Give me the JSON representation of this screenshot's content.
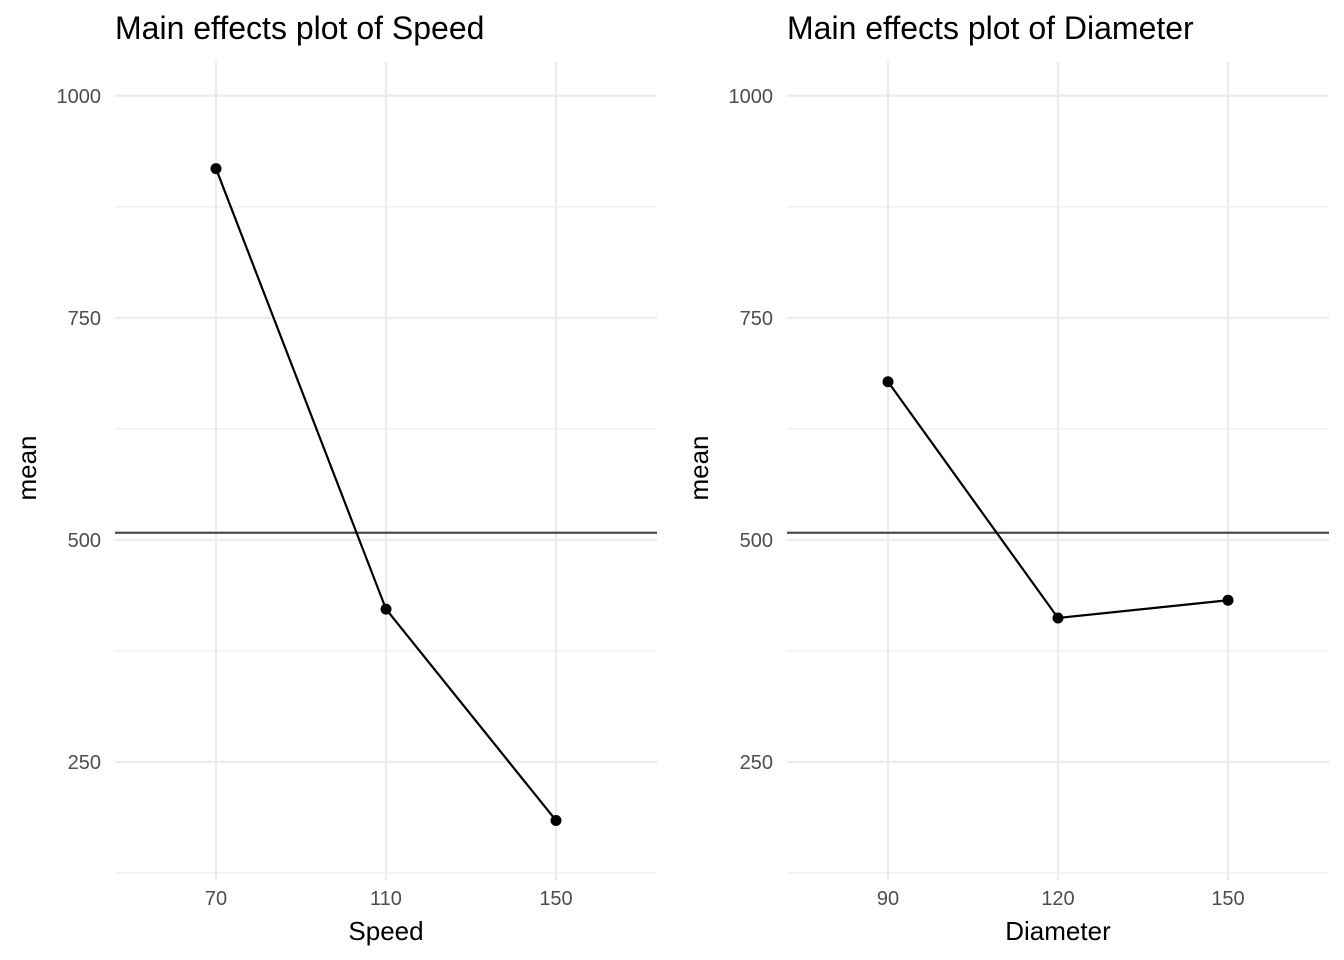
{
  "chart_data": [
    {
      "type": "line",
      "title": "Main effects plot of Speed",
      "xlabel": "Speed",
      "ylabel": "mean",
      "categories": [
        "70",
        "110",
        "150"
      ],
      "values": [
        918,
        422,
        184
      ],
      "reference_line": 508,
      "ylim": [
        117,
        1038
      ],
      "yticks": [
        250,
        500,
        750,
        1000
      ],
      "grid": true,
      "legend": "none"
    },
    {
      "type": "line",
      "title": "Main effects plot of Diameter",
      "xlabel": "Diameter",
      "ylabel": "mean",
      "categories": [
        "90",
        "120",
        "150"
      ],
      "values": [
        678,
        412,
        432
      ],
      "reference_line": 508,
      "ylim": [
        117,
        1038
      ],
      "yticks": [
        250,
        500,
        750,
        1000
      ],
      "grid": true,
      "legend": "none"
    }
  ]
}
